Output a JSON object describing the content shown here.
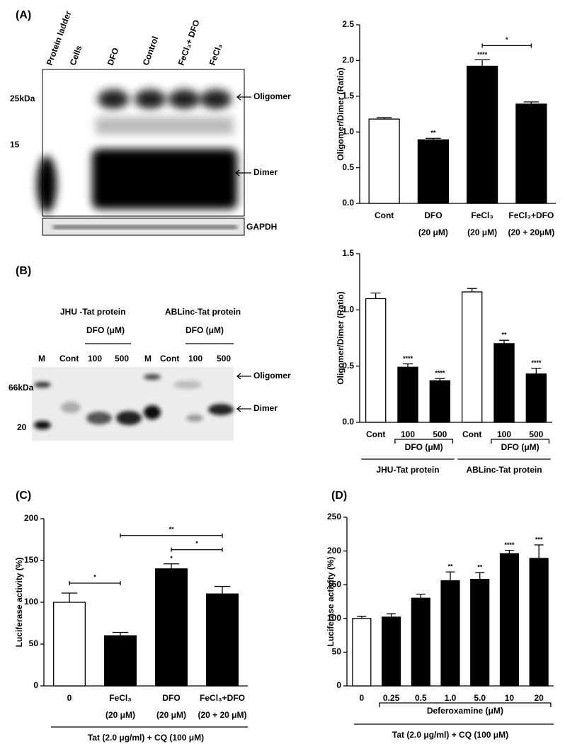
{
  "panels": [
    "(A)",
    "(B)",
    "(C)",
    "(D)"
  ],
  "blot_a": {
    "lanes": [
      "Protein ladder",
      "Cells",
      "DFO",
      "Control",
      "FeCl₃+ DFO",
      "FeCl₃"
    ],
    "markers": [
      "25kDa",
      "15"
    ],
    "bands": [
      "Oligomer",
      "Dimer"
    ],
    "loading": "GAPDH"
  },
  "blot_b": {
    "groups": [
      "JHU -Tat protein",
      "ABLinc-Tat protein"
    ],
    "treatment": [
      "DFO (μM)",
      "DFO (μM)"
    ],
    "lanes": [
      "M",
      "Cont",
      "100",
      "500",
      "M",
      "Cont",
      "100",
      "500"
    ],
    "markers": [
      "66kDa",
      "20"
    ],
    "bands": [
      "Oligomer",
      "Dimer"
    ]
  },
  "chart_data": [
    {
      "type": "bar",
      "ylabel": "Oligomer/Dimer (Ratio)",
      "categories": [
        "Cont",
        "DFO",
        "FeCl₃",
        "FeCl₃+DFO"
      ],
      "sublabels": [
        null,
        "(20 μM)",
        "(20 μM)",
        "(20 + 20μM)"
      ],
      "values": [
        1.18,
        0.89,
        1.92,
        1.39
      ],
      "errors": [
        0.02,
        0.02,
        0.09,
        0.03
      ],
      "colors": [
        "#ffffff",
        "#000000",
        "#000000",
        "#000000"
      ],
      "significance": [
        null,
        "**",
        "****",
        null
      ],
      "brackets": [
        {
          "span": [
            2,
            3
          ],
          "label": "*"
        }
      ],
      "ylim": [
        0,
        2.5
      ],
      "yticks": [
        {
          "value": 0,
          "label": "0.0"
        },
        0.5,
        {
          "value": 1,
          "label": "1.0"
        },
        1.5,
        {
          "value": 2,
          "label": "2.0"
        },
        2.5
      ]
    },
    {
      "type": "bar",
      "ylabel": "Oligomer/Dimer (Ratio)",
      "categories": [
        "Cont",
        "100",
        "500",
        "Cont",
        "100",
        "500"
      ],
      "values": [
        1.1,
        0.49,
        0.37,
        1.16,
        0.7,
        0.43
      ],
      "errors": [
        0.05,
        0.03,
        0.02,
        0.03,
        0.03,
        0.05
      ],
      "colors": [
        "#ffffff",
        "#000000",
        "#000000",
        "#ffffff",
        "#000000",
        "#000000"
      ],
      "significance": [
        null,
        "****",
        "****",
        null,
        "**",
        "****"
      ],
      "groups": [
        {
          "span": [
            1,
            2
          ],
          "label": "DFO (μM)"
        },
        {
          "span": [
            4,
            5
          ],
          "label": "DFO (μM)"
        }
      ],
      "supergroups": [
        {
          "span": [
            0,
            2
          ],
          "label": "JHU-Tat protein"
        },
        {
          "span": [
            3,
            5
          ],
          "label": "ABLinc-Tat protein"
        }
      ],
      "ylim": [
        0,
        1.5
      ],
      "yticks": [
        {
          "value": 0,
          "label": "0.0"
        },
        0.5,
        {
          "value": 1,
          "label": "1.0"
        },
        1.5
      ]
    },
    {
      "type": "bar",
      "ylabel": "Luciferase activity (%)",
      "xlabel": "Tat (2.0 μg/ml) + CQ (100 μM)",
      "categories": [
        "0",
        "FeCl₃",
        "DFO",
        "FeCl₃+DFO"
      ],
      "sublabels": [
        null,
        "(20 μM)",
        "(20 μM)",
        "(20 + 20 μM)"
      ],
      "values": [
        100,
        60,
        140,
        110
      ],
      "errors": [
        11,
        4,
        6,
        9
      ],
      "colors": [
        "#ffffff",
        "#000000",
        "#000000",
        "#000000"
      ],
      "significance": [
        null,
        null,
        "*",
        null
      ],
      "brackets": [
        {
          "span": [
            0,
            1
          ],
          "label": "*"
        },
        {
          "span": [
            2,
            3
          ],
          "label": "*"
        },
        {
          "span": [
            1,
            3
          ],
          "label": "**"
        }
      ],
      "ylim": [
        0,
        200
      ],
      "yticks": [
        0,
        50,
        100,
        150,
        200
      ]
    },
    {
      "type": "bar",
      "ylabel": "Luciferase activity (%)",
      "xlabel": "Tat (2.0 μg/ml) + CQ (100 μM)",
      "categories": [
        "0",
        "0.25",
        "0.5",
        "1.0",
        "5.0",
        "10",
        "20"
      ],
      "values": [
        100,
        102,
        130,
        156,
        158,
        196,
        189
      ],
      "errors": [
        3,
        5,
        6,
        13,
        10,
        5,
        20
      ],
      "colors": [
        "#ffffff",
        "#000000",
        "#000000",
        "#000000",
        "#000000",
        "#000000",
        "#000000"
      ],
      "significance": [
        null,
        null,
        null,
        "**",
        "**",
        "****",
        "***"
      ],
      "groups": [
        {
          "span": [
            1,
            6
          ],
          "label": "Deferoxamine (μM)"
        }
      ],
      "ylim": [
        0,
        250
      ],
      "yticks": [
        0,
        50,
        100,
        150,
        200,
        250
      ]
    }
  ]
}
